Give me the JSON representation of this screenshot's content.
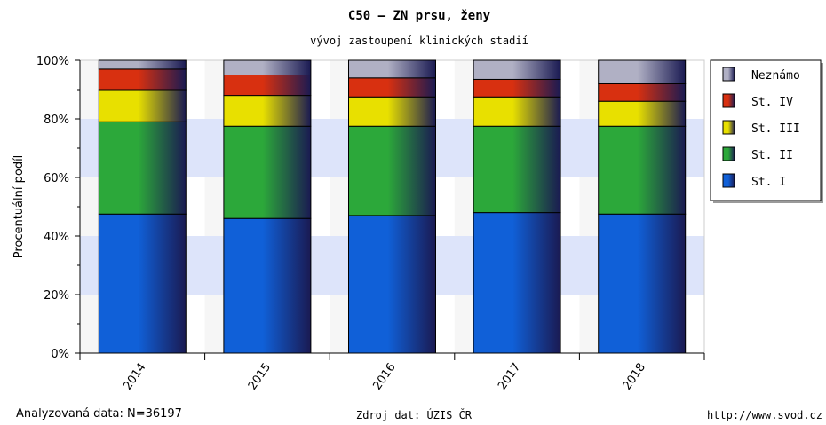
{
  "colors": {
    "I": "#1060d8",
    "II": "#2ca83a",
    "III": "#e8e000",
    "IV": "#d83010",
    "Neznamo": "#b0b0c4",
    "band": "#dde4fa",
    "stripe": "#f6f6f6"
  },
  "chart_data": {
    "type": "bar",
    "stacked": true,
    "title": "C50 – ZN prsu, ženy",
    "subtitle": "vývoj zastoupení klinických stadií",
    "ylabel": "Procentuální podíl",
    "ylim": [
      0,
      100
    ],
    "yticks": [
      "0%",
      "20%",
      "40%",
      "60%",
      "80%",
      "100%"
    ],
    "categories": [
      "2014",
      "2015",
      "2016",
      "2017",
      "2018"
    ],
    "series": [
      {
        "name": "St. I",
        "key": "I",
        "values": [
          47.5,
          46.0,
          47.0,
          48.0,
          47.5
        ]
      },
      {
        "name": "St. II",
        "key": "II",
        "values": [
          31.5,
          31.5,
          30.5,
          29.5,
          30.0
        ]
      },
      {
        "name": "St. III",
        "key": "III",
        "values": [
          11.0,
          10.5,
          10.0,
          10.0,
          8.5
        ]
      },
      {
        "name": "St. IV",
        "key": "IV",
        "values": [
          7.0,
          7.0,
          6.5,
          6.0,
          6.0
        ]
      },
      {
        "name": "Neznámo",
        "key": "Neznamo",
        "values": [
          3.0,
          5.0,
          6.0,
          6.5,
          8.0
        ]
      }
    ],
    "legend_position": "right",
    "grid": "alternating horizontal bands"
  },
  "footer": {
    "analyzed": "Analyzovaná data: N=36197",
    "source": "Zdroj dat: ÚZIS ČR",
    "url": "http://www.svod.cz"
  }
}
